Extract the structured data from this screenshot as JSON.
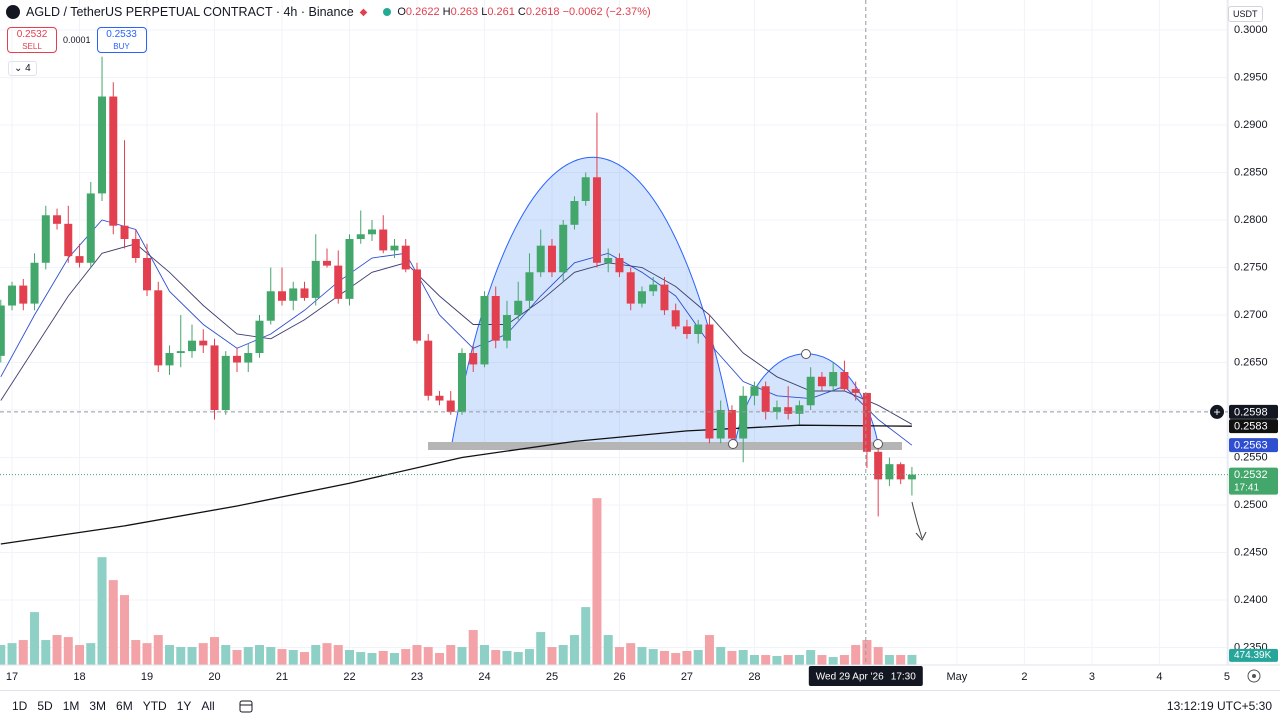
{
  "header": {
    "symbol": "AGLD / TetherUS PERPETUAL CONTRACT · 4h · Binance",
    "ohlc_labels": [
      "O",
      "H",
      "L",
      "C"
    ],
    "change": "−0.0062 (−2.37%)",
    "currency": "USDT",
    "indicator_count": "4"
  },
  "trade": {
    "sell_price": "0.2532",
    "sell": "SELL",
    "spread": "0.0001",
    "buy_price": "0.2533",
    "buy": "BUY"
  },
  "toolbar": {
    "ranges": [
      "1D",
      "5D",
      "1M",
      "3M",
      "6M",
      "YTD",
      "1Y",
      "All"
    ],
    "clock": "13:12:19 UTC+5:30"
  },
  "chart_data": {
    "type": "candlestick",
    "up_color": "#43a66b",
    "down_color": "#e2404f",
    "volume_up_color": "#8ed0c6",
    "volume_down_color": "#f3a3a8",
    "x": [
      -1,
      0,
      1,
      2,
      3,
      4,
      5,
      6,
      7,
      8,
      9,
      10,
      11,
      12,
      13,
      14,
      15,
      16,
      17,
      18,
      19,
      20,
      21,
      22,
      23,
      24,
      25,
      26,
      27,
      28,
      29,
      30,
      31,
      32,
      33,
      34,
      35,
      36,
      37,
      38,
      39,
      40,
      41,
      42,
      43,
      44,
      45,
      46,
      47,
      48,
      49,
      50,
      51,
      52,
      53,
      54,
      55,
      56,
      57,
      58,
      59,
      60,
      61,
      62,
      63,
      64,
      65,
      66,
      67,
      68,
      69,
      70,
      71,
      72,
      73,
      74,
      75,
      76,
      77,
      78,
      79,
      80
    ],
    "open": [
      0.2657,
      0.271,
      0.2731,
      0.2712,
      0.2755,
      0.2805,
      0.2796,
      0.2762,
      0.2755,
      0.2828,
      0.293,
      0.2794,
      0.278,
      0.276,
      0.2726,
      0.2647,
      0.266,
      0.2662,
      0.2673,
      0.2668,
      0.26,
      0.2657,
      0.265,
      0.266,
      0.2694,
      0.2725,
      0.2715,
      0.2728,
      0.2718,
      0.2757,
      0.2752,
      0.2717,
      0.278,
      0.2785,
      0.279,
      0.2768,
      0.2773,
      0.2748,
      0.2673,
      0.2615,
      0.261,
      0.2598,
      0.266,
      0.2648,
      0.272,
      0.2673,
      0.27,
      0.2715,
      0.2745,
      0.2773,
      0.2745,
      0.2795,
      0.282,
      0.2845,
      0.2755,
      0.276,
      0.2745,
      0.2712,
      0.2725,
      0.2732,
      0.2705,
      0.2688,
      0.268,
      0.269,
      0.257,
      0.26,
      0.257,
      0.2615,
      0.2625,
      0.2598,
      0.2603,
      0.2596,
      0.2605,
      0.2635,
      0.2625,
      0.264,
      0.2622,
      0.2618,
      0.2556,
      0.2527,
      0.2543,
      0.2527
    ],
    "high": [
      0.2716,
      0.2735,
      0.2738,
      0.2765,
      0.2815,
      0.2812,
      0.2815,
      0.2775,
      0.284,
      0.2972,
      0.2945,
      0.2884,
      0.279,
      0.2775,
      0.2735,
      0.2668,
      0.27,
      0.269,
      0.2685,
      0.2675,
      0.2662,
      0.2665,
      0.267,
      0.27,
      0.275,
      0.275,
      0.2735,
      0.2735,
      0.2785,
      0.277,
      0.2768,
      0.2785,
      0.281,
      0.28,
      0.2805,
      0.278,
      0.278,
      0.2755,
      0.268,
      0.262,
      0.262,
      0.2665,
      0.2668,
      0.2725,
      0.273,
      0.2715,
      0.2735,
      0.2765,
      0.279,
      0.278,
      0.28,
      0.2825,
      0.285,
      0.2913,
      0.277,
      0.2765,
      0.275,
      0.273,
      0.274,
      0.274,
      0.2712,
      0.2695,
      0.2695,
      0.27,
      0.261,
      0.2605,
      0.2625,
      0.263,
      0.263,
      0.261,
      0.2625,
      0.261,
      0.2645,
      0.264,
      0.265,
      0.2652,
      0.263,
      0.2618,
      0.2565,
      0.255,
      0.2545,
      0.254
    ],
    "low": [
      0.265,
      0.2705,
      0.2705,
      0.2705,
      0.2748,
      0.279,
      0.2755,
      0.275,
      0.275,
      0.282,
      0.2785,
      0.277,
      0.2755,
      0.272,
      0.264,
      0.2637,
      0.2645,
      0.2655,
      0.266,
      0.259,
      0.2595,
      0.264,
      0.264,
      0.2655,
      0.269,
      0.271,
      0.2705,
      0.2715,
      0.271,
      0.275,
      0.2712,
      0.271,
      0.2775,
      0.2778,
      0.2765,
      0.276,
      0.2745,
      0.267,
      0.261,
      0.2605,
      0.2595,
      0.2595,
      0.264,
      0.2645,
      0.2665,
      0.2665,
      0.2695,
      0.2705,
      0.274,
      0.274,
      0.2735,
      0.279,
      0.2815,
      0.275,
      0.2745,
      0.274,
      0.2705,
      0.2708,
      0.272,
      0.27,
      0.2685,
      0.2675,
      0.267,
      0.2565,
      0.2565,
      0.2565,
      0.2545,
      0.2605,
      0.259,
      0.259,
      0.259,
      0.2585,
      0.26,
      0.262,
      0.262,
      0.262,
      0.261,
      0.2539,
      0.2488,
      0.252,
      0.2522,
      0.251
    ],
    "close": [
      0.271,
      0.2731,
      0.2712,
      0.2755,
      0.2805,
      0.2796,
      0.2762,
      0.2755,
      0.2828,
      0.293,
      0.2794,
      0.278,
      0.276,
      0.2726,
      0.2647,
      0.266,
      0.2662,
      0.2673,
      0.2668,
      0.26,
      0.2657,
      0.265,
      0.266,
      0.2694,
      0.2725,
      0.2715,
      0.2728,
      0.2718,
      0.2757,
      0.2752,
      0.2717,
      0.278,
      0.2785,
      0.279,
      0.2768,
      0.2773,
      0.2748,
      0.2673,
      0.2615,
      0.261,
      0.2598,
      0.266,
      0.2648,
      0.272,
      0.2673,
      0.27,
      0.2715,
      0.2745,
      0.2773,
      0.2745,
      0.2795,
      0.282,
      0.2845,
      0.2755,
      0.276,
      0.2745,
      0.2712,
      0.2725,
      0.2732,
      0.2705,
      0.2688,
      0.268,
      0.269,
      0.257,
      0.26,
      0.257,
      0.2615,
      0.2625,
      0.2598,
      0.2603,
      0.2596,
      0.2605,
      0.2635,
      0.2625,
      0.264,
      0.2622,
      0.2618,
      0.2556,
      0.2527,
      0.2543,
      0.2527,
      0.2532
    ],
    "volume": [
      940,
      1030,
      1175,
      2490,
      1175,
      1410,
      1315,
      940,
      1030,
      5075,
      3995,
      3290,
      1175,
      1030,
      1410,
      940,
      845,
      845,
      1030,
      1315,
      940,
      705,
      845,
      940,
      845,
      750,
      705,
      610,
      940,
      1030,
      940,
      705,
      610,
      565,
      660,
      565,
      750,
      940,
      845,
      565,
      940,
      845,
      1645,
      940,
      705,
      660,
      610,
      750,
      1550,
      845,
      940,
      1410,
      2725,
      7850,
      1410,
      845,
      1030,
      845,
      750,
      660,
      565,
      660,
      705,
      1410,
      845,
      660,
      705,
      470,
      470,
      425,
      470,
      470,
      705,
      470,
      375,
      470,
      940,
      1175,
      845,
      470,
      470,
      474.39
    ],
    "volume_label": "474.39K",
    "volume_lim": [
      0,
      8000
    ],
    "countdown": "17:41",
    "series": [
      {
        "color": "#2f4fd0",
        "x": [
          -1,
          2,
          5,
          8,
          11,
          14,
          17,
          20,
          23,
          26,
          29,
          32,
          35,
          38,
          41,
          44,
          47,
          50,
          53,
          56,
          59,
          62,
          65,
          68,
          71,
          74,
          77,
          80
        ],
        "values": [
          0.2635,
          0.27,
          0.276,
          0.28,
          0.279,
          0.2725,
          0.269,
          0.2665,
          0.268,
          0.2705,
          0.2735,
          0.276,
          0.2765,
          0.27,
          0.2665,
          0.268,
          0.272,
          0.2755,
          0.2765,
          0.2745,
          0.272,
          0.267,
          0.263,
          0.2615,
          0.2612,
          0.2625,
          0.259,
          0.2563
        ]
      },
      {
        "color": "#3b3f6e",
        "x": [
          -1,
          2,
          5,
          8,
          11,
          14,
          17,
          20,
          23,
          26,
          29,
          32,
          35,
          38,
          41,
          44,
          47,
          50,
          53,
          56,
          59,
          62,
          65,
          68,
          71,
          74,
          77,
          80
        ],
        "values": [
          0.261,
          0.2665,
          0.272,
          0.2765,
          0.2775,
          0.2745,
          0.271,
          0.268,
          0.2675,
          0.2695,
          0.272,
          0.2745,
          0.2755,
          0.272,
          0.269,
          0.269,
          0.2715,
          0.2745,
          0.2755,
          0.275,
          0.273,
          0.27,
          0.266,
          0.2635,
          0.262,
          0.262,
          0.2605,
          0.2585
        ]
      },
      {
        "color": "#111111",
        "x": [
          -1,
          10,
          20,
          30,
          40,
          50,
          60,
          70,
          80
        ],
        "values": [
          0.2459,
          0.2478,
          0.2499,
          0.2523,
          0.255,
          0.2567,
          0.2578,
          0.2584,
          0.2583
        ]
      }
    ],
    "crosshair": {
      "x": 75.9,
      "price": 0.2598,
      "date": "Wed 29 Apr '26",
      "time": "17:30"
    },
    "xlim": [
      -1.07,
      108.1
    ],
    "ylim": [
      0.23316,
      0.30316
    ],
    "xticks": [
      {
        "value": 0,
        "label": "17"
      },
      {
        "value": 6,
        "label": "18"
      },
      {
        "value": 12,
        "label": "19"
      },
      {
        "value": 18,
        "label": "20"
      },
      {
        "value": 24,
        "label": "21"
      },
      {
        "value": 30,
        "label": "22"
      },
      {
        "value": 36,
        "label": "23"
      },
      {
        "value": 42,
        "label": "24"
      },
      {
        "value": 48,
        "label": "25"
      },
      {
        "value": 54,
        "label": "26"
      },
      {
        "value": 60,
        "label": "27"
      },
      {
        "value": 66,
        "label": "28"
      },
      {
        "value": 84,
        "label": "May"
      },
      {
        "value": 90,
        "label": "2"
      },
      {
        "value": 96,
        "label": "3"
      },
      {
        "value": 102,
        "label": "4"
      },
      {
        "value": 108,
        "label": "5"
      }
    ],
    "yticks": [
      {
        "value": 0.3,
        "label": "0.3000"
      },
      {
        "value": 0.295,
        "label": "0.2950"
      },
      {
        "value": 0.29,
        "label": "0.2900"
      },
      {
        "value": 0.285,
        "label": "0.2850"
      },
      {
        "value": 0.28,
        "label": "0.2800"
      },
      {
        "value": 0.275,
        "label": "0.2750"
      },
      {
        "value": 0.27,
        "label": "0.2700"
      },
      {
        "value": 0.265,
        "label": "0.2650"
      },
      {
        "value": 0.26,
        "label": "0.2600"
      },
      {
        "value": 0.255,
        "label": "0.2550"
      },
      {
        "value": 0.25,
        "label": "0.2500"
      },
      {
        "value": 0.245,
        "label": "0.2450"
      },
      {
        "value": 0.24,
        "label": "0.2400"
      },
      {
        "value": 0.235,
        "label": "0.2350"
      }
    ],
    "grid": true
  }
}
